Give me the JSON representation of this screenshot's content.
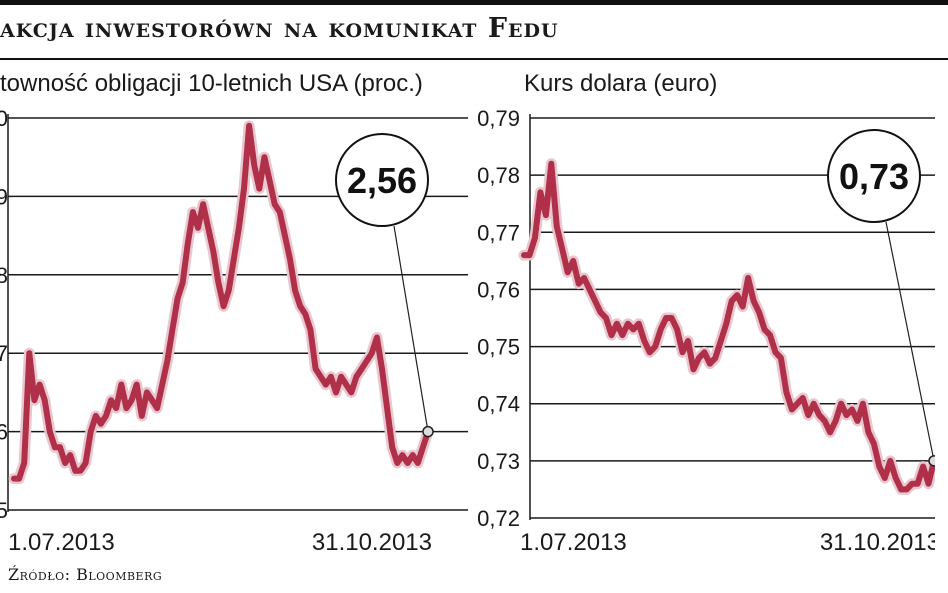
{
  "header": {
    "title": "akcja inwestorówn na komunikat Fedu"
  },
  "source": "Źródło: Bloomberg",
  "colors": {
    "series": "#b0304a",
    "grid": "#1a1a1a",
    "text": "#1a1a1a"
  },
  "chart_data": [
    {
      "type": "line",
      "title": "towność obligacji 10-letnich USA (proc.)",
      "tick_labels": [
        "0",
        "9",
        "8",
        "7",
        "6",
        "5"
      ],
      "y_values": [
        3.0,
        2.9,
        2.8,
        2.7,
        2.6,
        2.5
      ],
      "ylim": [
        2.5,
        3.0
      ],
      "x_labels": [
        "1.07.2013",
        "31.10.2013"
      ],
      "callout": "2,56",
      "series": [
        {
          "values": [
            2.54,
            2.54,
            2.56,
            2.7,
            2.64,
            2.66,
            2.64,
            2.6,
            2.58,
            2.58,
            2.56,
            2.57,
            2.55,
            2.55,
            2.56,
            2.6,
            2.62,
            2.61,
            2.62,
            2.64,
            2.63,
            2.66,
            2.63,
            2.64,
            2.66,
            2.62,
            2.65,
            2.64,
            2.63,
            2.66,
            2.69,
            2.73,
            2.77,
            2.79,
            2.84,
            2.88,
            2.86,
            2.89,
            2.86,
            2.83,
            2.79,
            2.76,
            2.78,
            2.82,
            2.86,
            2.91,
            2.99,
            2.94,
            2.91,
            2.95,
            2.92,
            2.89,
            2.88,
            2.85,
            2.82,
            2.78,
            2.76,
            2.75,
            2.73,
            2.68,
            2.67,
            2.66,
            2.67,
            2.65,
            2.67,
            2.66,
            2.65,
            2.67,
            2.68,
            2.69,
            2.7,
            2.72,
            2.68,
            2.63,
            2.58,
            2.56,
            2.57,
            2.56,
            2.57,
            2.56,
            2.58,
            2.6
          ]
        }
      ]
    },
    {
      "type": "line",
      "title": "Kurs dolara (euro)",
      "tick_labels": [
        "0,79",
        "0,78",
        "0,77",
        "0,76",
        "0,75",
        "0,74",
        "0,73",
        "0,72"
      ],
      "y_values": [
        0.79,
        0.78,
        0.77,
        0.76,
        0.75,
        0.74,
        0.73,
        0.72
      ],
      "ylim": [
        0.72,
        0.79
      ],
      "x_labels": [
        "1.07.2013",
        "31.10.2013"
      ],
      "callout": "0,73",
      "series": [
        {
          "values": [
            0.766,
            0.766,
            0.769,
            0.777,
            0.773,
            0.782,
            0.771,
            0.767,
            0.763,
            0.765,
            0.761,
            0.762,
            0.76,
            0.758,
            0.756,
            0.755,
            0.752,
            0.754,
            0.752,
            0.754,
            0.753,
            0.754,
            0.751,
            0.749,
            0.75,
            0.753,
            0.755,
            0.755,
            0.753,
            0.749,
            0.751,
            0.746,
            0.748,
            0.749,
            0.747,
            0.748,
            0.751,
            0.754,
            0.758,
            0.759,
            0.757,
            0.762,
            0.758,
            0.756,
            0.753,
            0.752,
            0.749,
            0.748,
            0.742,
            0.739,
            0.74,
            0.741,
            0.738,
            0.74,
            0.738,
            0.737,
            0.735,
            0.737,
            0.74,
            0.738,
            0.739,
            0.737,
            0.74,
            0.735,
            0.733,
            0.729,
            0.727,
            0.73,
            0.727,
            0.725,
            0.725,
            0.726,
            0.726,
            0.729,
            0.726,
            0.73
          ]
        }
      ]
    }
  ]
}
